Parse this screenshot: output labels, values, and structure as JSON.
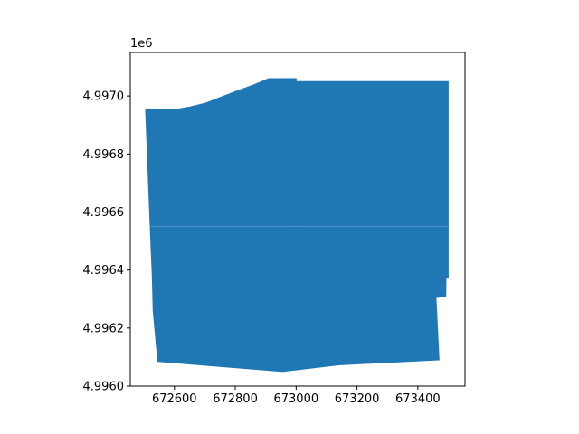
{
  "chart_data": {
    "type": "area",
    "title": "",
    "xlabel": "",
    "ylabel": "",
    "y_offset_label": "1e6",
    "xlim": [
      672455,
      673555
    ],
    "ylim": [
      4.996,
      4.99715
    ],
    "x_ticks": [
      672600,
      672800,
      673000,
      673200,
      673400
    ],
    "x_tick_labels": [
      "672600",
      "672800",
      "673000",
      "673200",
      "673400"
    ],
    "y_ticks": [
      4.996,
      4.9962,
      4.9964,
      4.9966,
      4.9968,
      4.997
    ],
    "y_tick_labels": [
      "4.9960",
      "4.9962",
      "4.9964",
      "4.9966",
      "4.9968",
      "4.9970"
    ],
    "grid": false,
    "fill_color": "#1f77b4",
    "divider_color": "#4a8fc2",
    "polygons": [
      {
        "name": "",
        "points": [
          [
            672505,
            4.996955
          ],
          [
            672560,
            4.996953
          ],
          [
            672610,
            4.996955
          ],
          [
            672650,
            4.996962
          ],
          [
            672700,
            4.996975
          ],
          [
            672745,
            4.996993
          ],
          [
            672800,
            4.997015
          ],
          [
            672860,
            4.997038
          ],
          [
            672910,
            4.99706
          ],
          [
            673000,
            4.99706
          ],
          [
            673000,
            4.99655
          ],
          [
            672520,
            4.99655
          ]
        ]
      },
      {
        "name": "",
        "points": [
          [
            672910,
            4.99706
          ],
          [
            672910,
            4.99705
          ],
          [
            673003,
            4.99705
          ],
          [
            673003,
            4.99705
          ],
          [
            673500,
            4.99705
          ],
          [
            673500,
            4.99655
          ],
          [
            673000,
            4.99655
          ],
          [
            673000,
            4.99706
          ]
        ]
      },
      {
        "name": "",
        "points": [
          [
            672520,
            4.99655
          ],
          [
            672527,
            4.99638
          ],
          [
            672530,
            4.99626
          ],
          [
            672545,
            4.996085
          ],
          [
            672955,
            4.99605
          ],
          [
            673140,
            4.996073
          ],
          [
            673470,
            4.99609
          ],
          [
            673460,
            4.996305
          ],
          [
            673492,
            4.996308
          ],
          [
            673493,
            4.996375
          ],
          [
            673500,
            4.996375
          ],
          [
            673500,
            4.99655
          ]
        ]
      }
    ],
    "dividers": [
      [
        [
          672520,
          4.99655
        ],
        [
          673500,
          4.99655
        ]
      ]
    ]
  }
}
